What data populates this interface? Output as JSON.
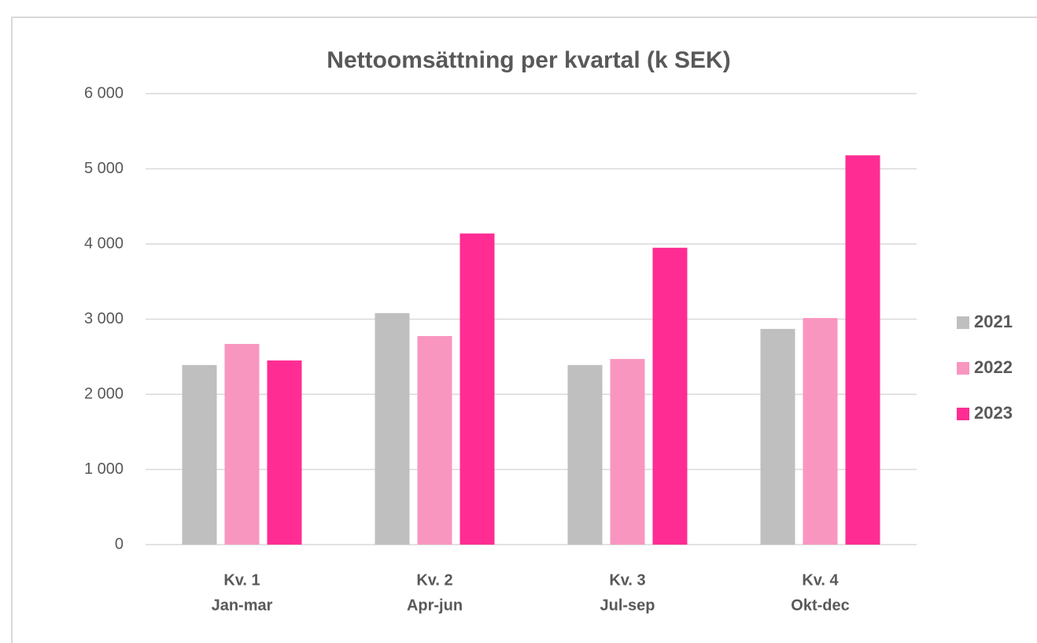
{
  "chart_data": {
    "type": "bar",
    "title": "Nettoomsättning per kvartal (k SEK)",
    "categories": [
      [
        "Kv. 1",
        "Jan-mar"
      ],
      [
        "Kv. 2",
        "Apr-jun"
      ],
      [
        "Kv. 3",
        "Jul-sep"
      ],
      [
        "Kv. 4",
        "Okt-dec"
      ]
    ],
    "series": [
      {
        "name": "2021",
        "color": "#bfbfbf",
        "values": [
          2390,
          3080,
          2390,
          2870
        ]
      },
      {
        "name": "2022",
        "color": "#f896c0",
        "values": [
          2670,
          2775,
          2470,
          3015
        ]
      },
      {
        "name": "2023",
        "color": "#ff2d93",
        "values": [
          2450,
          4140,
          3950,
          5180
        ]
      }
    ],
    "ylim": [
      0,
      6000
    ],
    "yticks": [
      0,
      {
        "value": 1000,
        "label": "1 000"
      },
      {
        "value": 2000,
        "label": "2 000"
      },
      {
        "value": 3000,
        "label": "3 000"
      },
      {
        "value": 4000,
        "label": "4 000"
      },
      {
        "value": 5000,
        "label": "5 000"
      },
      {
        "value": 6000,
        "label": "6 000"
      }
    ],
    "grid": true,
    "legend": "right"
  }
}
